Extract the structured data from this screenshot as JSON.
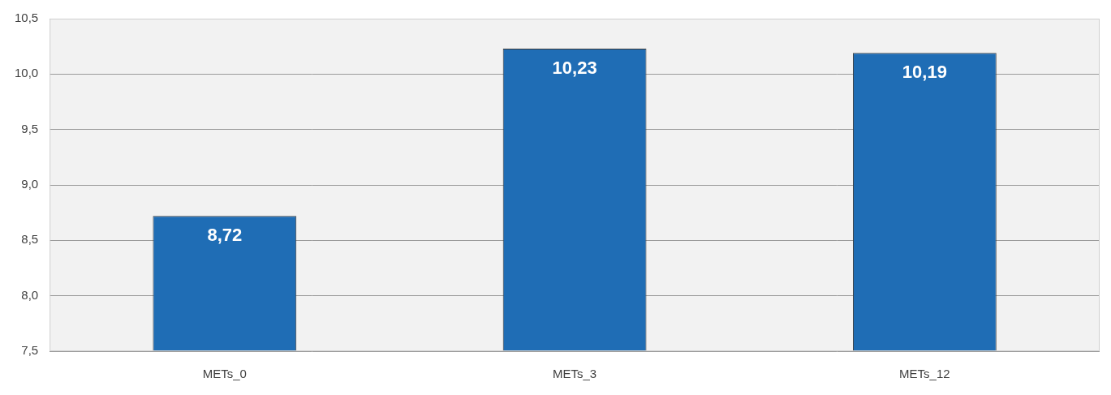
{
  "chart_data": {
    "type": "bar",
    "categories": [
      "METs_0",
      "METs_3",
      "METs_12"
    ],
    "values": [
      8.72,
      10.23,
      10.19
    ],
    "value_labels": [
      "8,72",
      "10,23",
      "10,19"
    ],
    "data_labels": true,
    "color": "#1f6db5",
    "ylim": [
      7.5,
      10.5
    ],
    "yticks": [
      {
        "value": 7.5,
        "label": "7,5"
      },
      {
        "value": 8,
        "label": "8,0"
      },
      {
        "value": 8.5,
        "label": "8,5"
      },
      {
        "value": 9,
        "label": "9,0"
      },
      {
        "value": 9.5,
        "label": "9,5"
      },
      {
        "value": 10,
        "label": "10,0"
      },
      {
        "value": 10.5,
        "label": "10,5"
      }
    ],
    "grid": true
  }
}
